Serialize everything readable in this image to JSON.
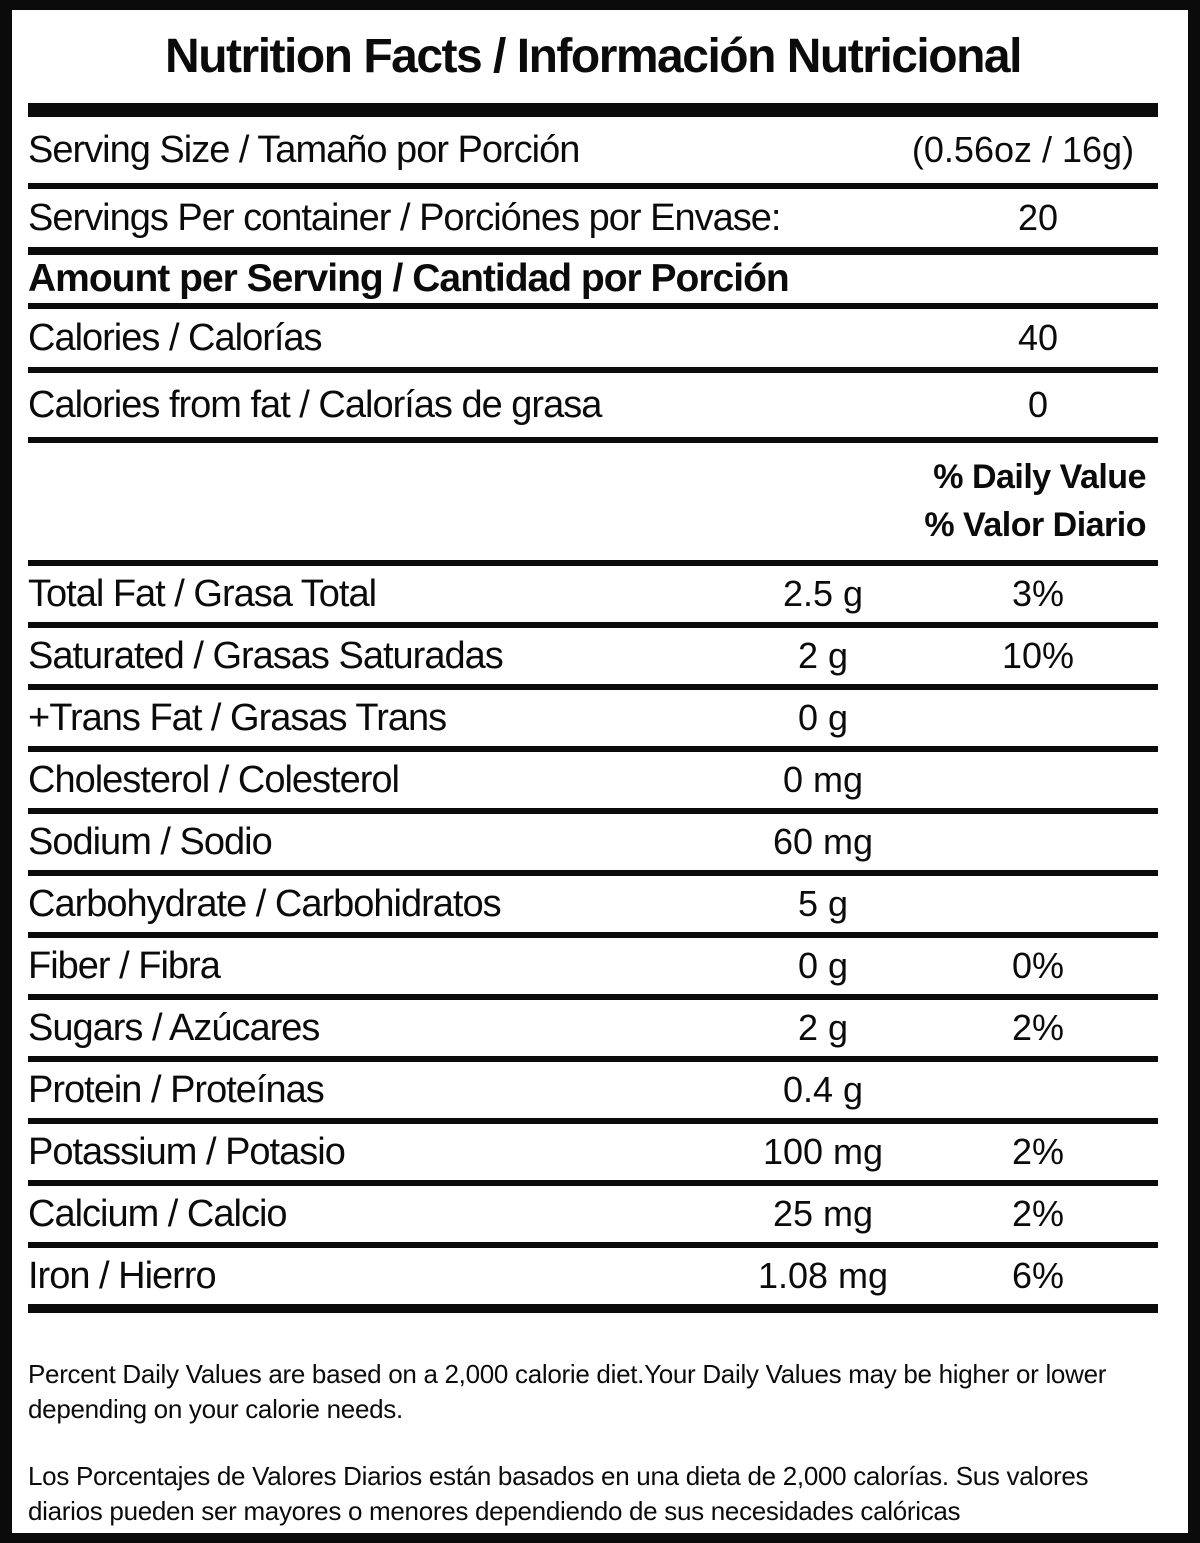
{
  "title": "Nutrition Facts / Información Nutricional",
  "colors": {
    "ink": "#0b0b0b",
    "paper": "#ffffff"
  },
  "rows": [
    {
      "id": "serving-size",
      "type": "serving",
      "label": "Serving Size / Tamaño por Porción",
      "right": "(0.56oz / 16g)"
    },
    {
      "id": "servings-per-container",
      "type": "servings",
      "label": "Servings Per container / Porciónes por Envase:",
      "right": "20"
    },
    {
      "id": "amount-per-serving",
      "type": "section",
      "label": "Amount per Serving / Cantidad por Porción"
    },
    {
      "id": "calories",
      "type": "calories",
      "label": "Calories / Calorías",
      "right": "40"
    },
    {
      "id": "calories-from-fat",
      "type": "calories-fat",
      "label": "Calories from fat / Calorías de grasa",
      "right": "0"
    },
    {
      "id": "daily-value-header",
      "type": "dv-header",
      "line1": "% Daily Value",
      "line2": "% Valor Diario"
    },
    {
      "id": "total-fat",
      "type": "nutrient",
      "label": "Total Fat / Grasa Total",
      "amount": "2.5 g",
      "dv": "3%"
    },
    {
      "id": "saturated-fat",
      "type": "nutrient",
      "label": "Saturated / Grasas Saturadas",
      "amount": "2 g",
      "dv": "10%"
    },
    {
      "id": "trans-fat",
      "type": "nutrient",
      "label": "+Trans Fat / Grasas Trans",
      "amount": "0 g",
      "dv": ""
    },
    {
      "id": "cholesterol",
      "type": "nutrient",
      "label": "Cholesterol / Colesterol",
      "amount": "0 mg",
      "dv": ""
    },
    {
      "id": "sodium",
      "type": "nutrient",
      "label": "Sodium / Sodio",
      "amount": "60 mg",
      "dv": ""
    },
    {
      "id": "carbohydrate",
      "type": "nutrient",
      "label": "Carbohydrate / Carbohidratos",
      "amount": "5 g",
      "dv": ""
    },
    {
      "id": "fiber",
      "type": "nutrient",
      "label": "Fiber / Fibra",
      "amount": "0 g",
      "dv": "0%"
    },
    {
      "id": "sugars",
      "type": "nutrient",
      "label": "Sugars / Azúcares",
      "amount": "2 g",
      "dv": "2%"
    },
    {
      "id": "protein",
      "type": "nutrient",
      "label": "Protein / Proteínas",
      "amount": "0.4 g",
      "dv": ""
    },
    {
      "id": "potassium",
      "type": "nutrient",
      "label": "Potassium / Potasio",
      "amount": "100 mg",
      "dv": "2%"
    },
    {
      "id": "calcium",
      "type": "nutrient",
      "label": "Calcium / Calcio",
      "amount": "25 mg",
      "dv": "2%"
    },
    {
      "id": "iron",
      "type": "nutrient",
      "label": "Iron / Hierro",
      "amount": "1.08 mg",
      "dv": "6%"
    }
  ],
  "footnotes": {
    "english": "Percent Daily Values are based on a 2,000 calorie diet.Your Daily Values may be higher or lower depending on your calorie needs.",
    "spanish": "Los Porcentajes de Valores Diarios están basados en una dieta de 2,000 calorías. Sus valores diarios pueden ser mayores o menores dependiendo de sus necesidades calóricas"
  }
}
